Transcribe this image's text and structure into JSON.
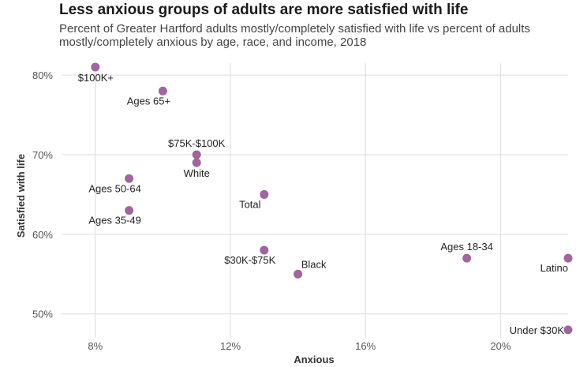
{
  "title": "Less anxious groups of adults are more satisfied with life",
  "subtitle": "Percent of Greater Hartford adults mostly/completely satisfied with life vs percent of adults mostly/completely anxious by age, race, and income, 2018",
  "chart_data": {
    "type": "scatter",
    "title": "Less anxious groups of adults are more satisfied with life",
    "subtitle": "Percent of Greater Hartford adults mostly/completely satisfied with life vs percent of adults mostly/completely anxious by age, race, and income, 2018",
    "xlabel": "Anxious",
    "ylabel": "Satisfied with life",
    "xlim": [
      0.07,
      0.22
    ],
    "ylim": [
      0.47,
      0.815
    ],
    "x_ticks": [
      0.08,
      0.12,
      0.16,
      0.2
    ],
    "x_tick_labels": [
      "8%",
      "12%",
      "16%",
      "20%"
    ],
    "y_ticks": [
      0.5,
      0.6,
      0.7,
      0.8
    ],
    "y_tick_labels": [
      "50%",
      "60%",
      "70%",
      "80%"
    ],
    "grid": true,
    "point_color": "#a0659f",
    "points": [
      {
        "label": "$100K+",
        "x": 0.08,
        "y": 0.81,
        "anchor": "start",
        "pos": "below"
      },
      {
        "label": "Ages 65+",
        "x": 0.1,
        "y": 0.78,
        "anchor": "middle",
        "pos": "below-left"
      },
      {
        "label": "$75K-$100K",
        "x": 0.11,
        "y": 0.7,
        "anchor": "middle",
        "pos": "above"
      },
      {
        "label": "White",
        "x": 0.11,
        "y": 0.69,
        "anchor": "middle",
        "pos": "below"
      },
      {
        "label": "Ages 50-64",
        "x": 0.09,
        "y": 0.67,
        "anchor": "middle",
        "pos": "below-left"
      },
      {
        "label": "Ages 35-49",
        "x": 0.09,
        "y": 0.63,
        "anchor": "middle",
        "pos": "below-left"
      },
      {
        "label": "Total",
        "x": 0.13,
        "y": 0.65,
        "anchor": "middle",
        "pos": "below-left"
      },
      {
        "label": "$30K-$75K",
        "x": 0.13,
        "y": 0.58,
        "anchor": "middle",
        "pos": "below-left"
      },
      {
        "label": "Black",
        "x": 0.14,
        "y": 0.55,
        "anchor": "middle",
        "pos": "above-right"
      },
      {
        "label": "Ages 18-34",
        "x": 0.19,
        "y": 0.57,
        "anchor": "middle",
        "pos": "above"
      },
      {
        "label": "Latino",
        "x": 0.22,
        "y": 0.57,
        "anchor": "end",
        "pos": "below-left"
      },
      {
        "label": "Under $30K",
        "x": 0.22,
        "y": 0.48,
        "anchor": "end",
        "pos": "left"
      }
    ]
  }
}
